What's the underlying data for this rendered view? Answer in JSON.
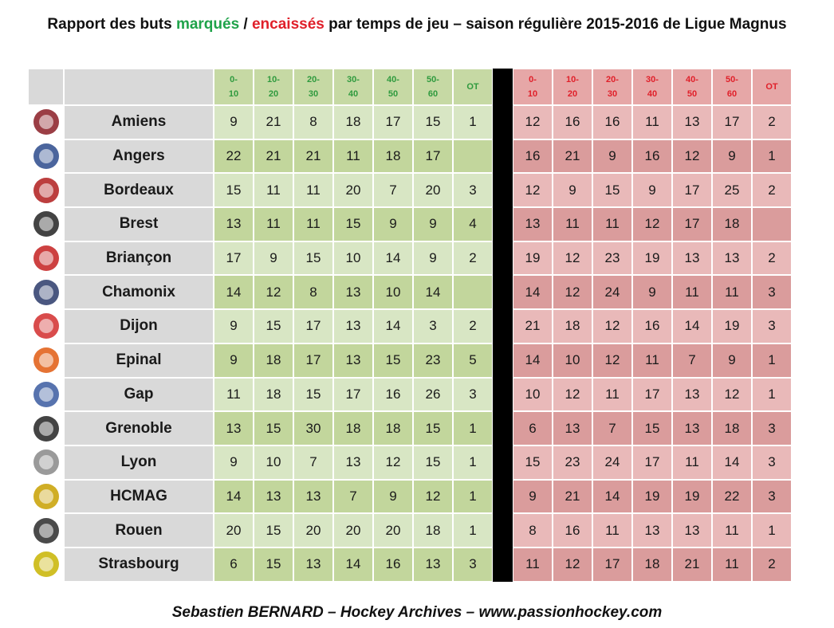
{
  "title": {
    "part1": "Rapport  des buts ",
    "scored_word": "marqués",
    "sep": " / ",
    "conceded_word": "encaissés",
    "part2": " par temps de jeu – saison régulière 2015-2016 de Ligue Magnus"
  },
  "footer": "Sebastien BERNARD – Hockey Archives – www.passionhockey.com",
  "colors": {
    "scored_header": "#2f9a3e",
    "conceded_header": "#e0202a",
    "green_light": "#d8e6c4",
    "green_dark": "#c2d69c",
    "red_light": "#e9b9b9",
    "red_dark": "#da9c9c"
  },
  "chart_data": {
    "type": "table",
    "title": "Rapport des buts marqués / encaissés par temps de jeu – saison régulière 2015-2016 de Ligue Magnus",
    "periods": [
      "0-\n10",
      "10-\n20",
      "20-\n30",
      "30-\n40",
      "40-\n50",
      "50-\n60",
      "OT"
    ],
    "teams": [
      {
        "name": "Amiens",
        "logo": "amiens-logo-icon",
        "scored": [
          "9",
          "21",
          "8",
          "18",
          "17",
          "15",
          "1"
        ],
        "conceded": [
          "12",
          "16",
          "16",
          "11",
          "13",
          "17",
          "2"
        ]
      },
      {
        "name": "Angers",
        "logo": "angers-logo-icon",
        "scored": [
          "22",
          "21",
          "21",
          "11",
          "18",
          "17",
          ""
        ],
        "conceded": [
          "16",
          "21",
          "9",
          "16",
          "12",
          "9",
          "1"
        ]
      },
      {
        "name": "Bordeaux",
        "logo": "bordeaux-logo-icon",
        "scored": [
          "15",
          "11",
          "11",
          "20",
          "7",
          "20",
          "3"
        ],
        "conceded": [
          "12",
          "9",
          "15",
          "9",
          "17",
          "25",
          "2"
        ]
      },
      {
        "name": "Brest",
        "logo": "brest-logo-icon",
        "scored": [
          "13",
          "11",
          "11",
          "15",
          "9",
          "9",
          "4"
        ],
        "conceded": [
          "13",
          "11",
          "11",
          "12",
          "17",
          "18",
          ""
        ]
      },
      {
        "name": "Briançon",
        "logo": "briancon-logo-icon",
        "scored": [
          "17",
          "9",
          "15",
          "10",
          "14",
          "9",
          "2"
        ],
        "conceded": [
          "19",
          "12",
          "23",
          "19",
          "13",
          "13",
          "2"
        ]
      },
      {
        "name": "Chamonix",
        "logo": "chamonix-logo-icon",
        "scored": [
          "14",
          "12",
          "8",
          "13",
          "10",
          "14",
          ""
        ],
        "conceded": [
          "14",
          "12",
          "24",
          "9",
          "11",
          "11",
          "3"
        ]
      },
      {
        "name": "Dijon",
        "logo": "dijon-logo-icon",
        "scored": [
          "9",
          "15",
          "17",
          "13",
          "14",
          "3",
          "2"
        ],
        "conceded": [
          "21",
          "18",
          "12",
          "16",
          "14",
          "19",
          "3"
        ]
      },
      {
        "name": "Epinal",
        "logo": "epinal-logo-icon",
        "scored": [
          "9",
          "18",
          "17",
          "13",
          "15",
          "23",
          "5"
        ],
        "conceded": [
          "14",
          "10",
          "12",
          "11",
          "7",
          "9",
          "1"
        ]
      },
      {
        "name": "Gap",
        "logo": "gap-logo-icon",
        "scored": [
          "11",
          "18",
          "15",
          "17",
          "16",
          "26",
          "3"
        ],
        "conceded": [
          "10",
          "12",
          "11",
          "17",
          "13",
          "12",
          "1"
        ]
      },
      {
        "name": "Grenoble",
        "logo": "grenoble-logo-icon",
        "scored": [
          "13",
          "15",
          "30",
          "18",
          "18",
          "15",
          "1"
        ],
        "conceded": [
          "6",
          "13",
          "7",
          "15",
          "13",
          "18",
          "3"
        ]
      },
      {
        "name": "Lyon",
        "logo": "lyon-logo-icon",
        "scored": [
          "9",
          "10",
          "7",
          "13",
          "12",
          "15",
          "1"
        ],
        "conceded": [
          "15",
          "23",
          "24",
          "17",
          "11",
          "14",
          "3"
        ]
      },
      {
        "name": "HCMAG",
        "logo": "hcmag-logo-icon",
        "scored": [
          "14",
          "13",
          "13",
          "7",
          "9",
          "12",
          "1"
        ],
        "conceded": [
          "9",
          "21",
          "14",
          "19",
          "19",
          "22",
          "3"
        ]
      },
      {
        "name": "Rouen",
        "logo": "rouen-logo-icon",
        "scored": [
          "20",
          "15",
          "20",
          "20",
          "20",
          "18",
          "1"
        ],
        "conceded": [
          "8",
          "16",
          "11",
          "13",
          "13",
          "11",
          "1"
        ]
      },
      {
        "name": "Strasbourg",
        "logo": "strasbourg-logo-icon",
        "scored": [
          "6",
          "15",
          "13",
          "14",
          "16",
          "13",
          "3"
        ],
        "conceded": [
          "11",
          "12",
          "17",
          "18",
          "21",
          "11",
          "2"
        ]
      }
    ]
  }
}
